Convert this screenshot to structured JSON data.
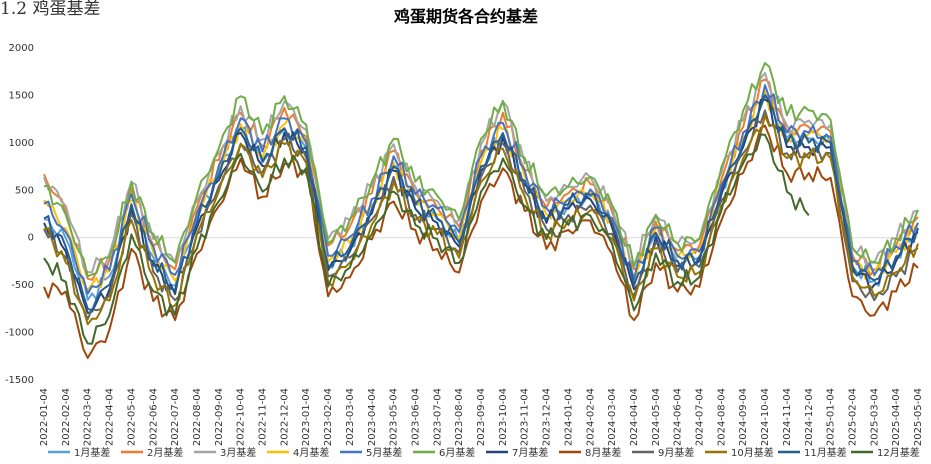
{
  "page_heading": "1.2 鸡蛋基差",
  "chart_data": {
    "type": "line",
    "title": "鸡蛋期货各合约基差",
    "xlabel": "",
    "ylabel": "",
    "ylim": [
      -1500,
      2000
    ],
    "yticks": [
      2000,
      1500,
      1000,
      500,
      0,
      -500,
      -1000,
      -1500
    ],
    "grid": "off",
    "legend": "bottom",
    "x_ticks": [
      "2022-01-04",
      "2022-02-04",
      "2022-03-04",
      "2022-04-04",
      "2022-05-04",
      "2022-06-04",
      "2022-07-04",
      "2022-08-04",
      "2022-09-04",
      "2022-10-04",
      "2022-11-04",
      "2022-12-04",
      "2023-01-04",
      "2023-02-04",
      "2023-03-04",
      "2023-04-04",
      "2023-05-04",
      "2023-06-04",
      "2023-07-04",
      "2023-08-04",
      "2023-09-04",
      "2023-10-04",
      "2023-11-04",
      "2023-12-04",
      "2024-01-04",
      "2024-02-04",
      "2024-03-04",
      "2024-04-04",
      "2024-05-04",
      "2024-06-04",
      "2024-07-04",
      "2024-08-04",
      "2024-09-04",
      "2024-10-04",
      "2024-11-04",
      "2024-12-04",
      "2025-01-04",
      "2025-02-04",
      "2025-03-04",
      "2025-04-04",
      "2025-05-04"
    ],
    "series": [
      {
        "name": "1月基差",
        "color": "#5aa0d6",
        "offset": -20,
        "values": [
          200,
          0,
          -650,
          -400,
          350,
          -200,
          -500,
          200,
          700,
          1150,
          800,
          1150,
          950,
          -300,
          -100,
          300,
          750,
          350,
          200,
          -50,
          750,
          1100,
          600,
          200,
          350,
          450,
          150,
          -500,
          50,
          -250,
          -200,
          500,
          1000,
          1500,
          1050,
          1050,
          1000,
          -300,
          -450,
          -200,
          100
        ]
      },
      {
        "name": "2月基差",
        "color": "#ed7d31",
        "offset": 60,
        "values": [
          650,
          250,
          -450,
          -250,
          500,
          -100,
          -350,
          300,
          800,
          1300,
          950,
          1350,
          1050,
          -100,
          100,
          450,
          900,
          450,
          300,
          100,
          900,
          1300,
          700,
          300,
          450,
          550,
          250,
          -350,
          150,
          -150,
          -100,
          600,
          1150,
          1650,
          1100,
          1150,
          1100,
          -200,
          -350,
          -100,
          200
        ]
      },
      {
        "name": "3月基差",
        "color": "#a5a5a5",
        "offset": 120,
        "values": [
          600,
          300,
          -400,
          -200,
          550,
          -50,
          -300,
          350,
          850,
          1350,
          1000,
          1400,
          1100,
          -50,
          150,
          500,
          950,
          500,
          350,
          150,
          950,
          1400,
          750,
          350,
          500,
          600,
          300,
          -300,
          200,
          -100,
          -50,
          650,
          1200,
          1700,
          1150,
          1200,
          1150,
          -150,
          -300,
          -50,
          250
        ]
      },
      {
        "name": "4月基差",
        "color": "#ffc000",
        "offset": -10,
        "values": [
          400,
          100,
          -550,
          -350,
          400,
          -150,
          -450,
          250,
          750,
          1200,
          850,
          1200,
          1000,
          -250,
          -50,
          350,
          800,
          400,
          250,
          0,
          800,
          1150,
          650,
          250,
          400,
          500,
          200,
          -450,
          100,
          -200,
          -150,
          550,
          1050,
          1550,
          1050,
          1100,
          1050,
          -250,
          -400,
          -150,
          150
        ]
      },
      {
        "name": "5月基差",
        "color": "#4472c4",
        "offset": 30,
        "values": [
          350,
          50,
          -600,
          -350,
          450,
          -100,
          -400,
          250,
          750,
          1250,
          900,
          1250,
          1000,
          -200,
          0,
          400,
          850,
          450,
          300,
          50,
          850,
          1200,
          700,
          300,
          400,
          500,
          200,
          -450,
          100,
          -200,
          -150,
          550,
          1100,
          1600,
          1100,
          1100,
          1050,
          -250,
          -400,
          -100,
          150
        ]
      },
      {
        "name": "6月基差",
        "color": "#70ad47",
        "offset": 140,
        "values": [
          500,
          200,
          -450,
          -250,
          550,
          0,
          -300,
          400,
          900,
          1450,
          1050,
          1450,
          1150,
          -100,
          150,
          550,
          1000,
          550,
          400,
          150,
          1000,
          1400,
          800,
          400,
          500,
          600,
          300,
          -350,
          200,
          -100,
          -50,
          700,
          1300,
          1800,
          1250,
          1300,
          1200,
          -150,
          -300,
          -50,
          250
        ]
      },
      {
        "name": "7月基差",
        "color": "#264478",
        "offset": 20,
        "values": [
          150,
          -150,
          -800,
          -550,
          300,
          -300,
          -600,
          100,
          600,
          1100,
          750,
          1100,
          900,
          -350,
          -150,
          250,
          700,
          300,
          150,
          -100,
          700,
          1050,
          550,
          150,
          300,
          400,
          100,
          -550,
          0,
          -300,
          -250,
          450,
          950,
          1450,
          950,
          950,
          950,
          -350,
          -500,
          -250,
          50
        ]
      },
      {
        "name": "8月基差",
        "color": "#9e480e",
        "offset": -60,
        "values": [
          -500,
          -550,
          -1250,
          -950,
          -100,
          -650,
          -850,
          -150,
          350,
          850,
          450,
          800,
          700,
          -600,
          -400,
          0,
          400,
          100,
          -100,
          -350,
          400,
          750,
          300,
          -100,
          100,
          200,
          -150,
          -850,
          -250,
          -550,
          -500,
          200,
          700,
          1200,
          700,
          700,
          650,
          -600,
          -800,
          -550,
          -300
        ]
      },
      {
        "name": "9月基差",
        "color": "#636363",
        "offset": -30,
        "values": [
          100,
          -200,
          -850,
          -600,
          250,
          -350,
          -650,
          50,
          550,
          1000,
          700,
          1050,
          850,
          -400,
          -200,
          200,
          650,
          250,
          100,
          -150,
          650,
          1000,
          500,
          100,
          250,
          350,
          50,
          -600,
          -50,
          -350,
          -300,
          400,
          900,
          1350,
          900,
          900,
          900,
          -450,
          -650,
          -400,
          -100
        ]
      },
      {
        "name": "10月基差",
        "color": "#997300",
        "offset": -40,
        "values": [
          100,
          -250,
          -900,
          -650,
          200,
          -400,
          -700,
          50,
          500,
          1000,
          650,
          1000,
          800,
          -450,
          -250,
          150,
          600,
          200,
          50,
          -200,
          600,
          950,
          450,
          50,
          200,
          300,
          0,
          -650,
          -100,
          -400,
          -350,
          350,
          850,
          1300,
          850,
          850,
          850,
          -400,
          -600,
          -350,
          -50
        ]
      },
      {
        "name": "11月基差",
        "color": "#255e91",
        "offset": 10,
        "values": [
          200,
          -100,
          -750,
          -500,
          350,
          -250,
          -550,
          150,
          650,
          1150,
          800,
          1150,
          950,
          -300,
          -100,
          300,
          750,
          350,
          200,
          -50,
          750,
          1100,
          600,
          200,
          350,
          450,
          150,
          -500,
          50,
          -250,
          -200,
          500,
          1000,
          1500,
          1000,
          1000,
          1000,
          -300,
          -450,
          -200,
          100
        ]
      },
      {
        "name": "12月基差",
        "color": "#43682b",
        "offset": -50,
        "values": [
          -200,
          -450,
          -1100,
          -800,
          50,
          -550,
          -800,
          -100,
          400,
          900,
          500,
          850,
          750,
          -500,
          -300,
          50,
          500,
          150,
          0,
          -250,
          500,
          850,
          350,
          0,
          150,
          250,
          -50,
          -750,
          -150,
          -450,
          -400,
          300,
          800,
          1100,
          500,
          250,
          null,
          null,
          null,
          null,
          null
        ]
      }
    ]
  }
}
